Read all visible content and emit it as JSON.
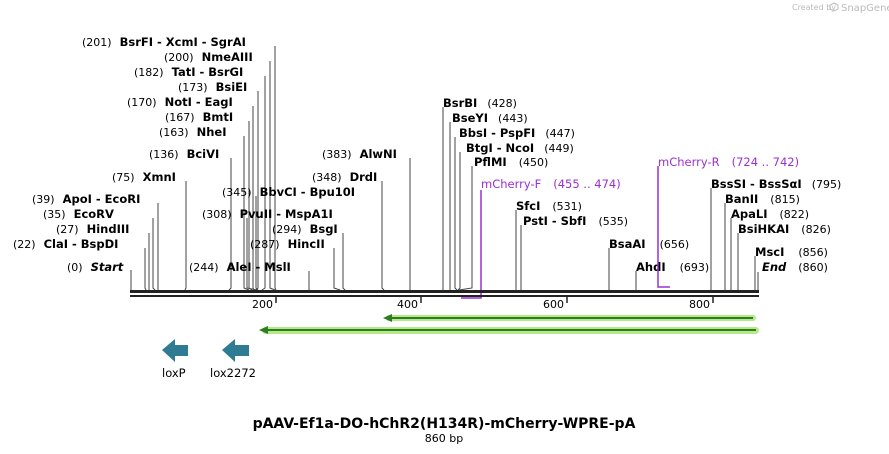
{
  "credit": {
    "created_by": "Created by",
    "brand": "SnapGene"
  },
  "map": {
    "title": "pAAV-Ef1a-DO-hChR2(H134R)-mCherry-WPRE-pA",
    "length_label": "860 bp",
    "length": 860
  },
  "ruler": {
    "ticks": [
      200,
      400,
      600,
      800
    ]
  },
  "enzymes": [
    {
      "pos": "(201)",
      "name": "BsrFI  -  XcmI  -  SgrAI",
      "bp": 201
    },
    {
      "pos": "(200)",
      "name": "NmeAIII",
      "bp": 200
    },
    {
      "pos": "(182)",
      "name": "TatI  -  BsrGI",
      "bp": 182
    },
    {
      "pos": "(173)",
      "name": "BsiEI",
      "bp": 173
    },
    {
      "pos": "(170)",
      "name": "NotI  -  EagI",
      "bp": 170
    },
    {
      "pos": "(167)",
      "name": "BmtI",
      "bp": 167
    },
    {
      "pos": "(163)",
      "name": "NheI",
      "bp": 163
    },
    {
      "pos": "(136)",
      "name": "BciVI",
      "bp": 136
    },
    {
      "pos": "(75)",
      "name": "XmnI",
      "bp": 75
    },
    {
      "pos": "(39)",
      "name": "ApoI  -  EcoRI",
      "bp": 39
    },
    {
      "pos": "(35)",
      "name": "EcoRV",
      "bp": 35
    },
    {
      "pos": "(27)",
      "name": "HindIII",
      "bp": 27
    },
    {
      "pos": "(22)",
      "name": "ClaI  -  BspDI",
      "bp": 22
    },
    {
      "pos": "(0)",
      "name": "Start",
      "bp": 0,
      "italic": true
    },
    {
      "pos": "(244)",
      "name": "AleI  -  MslI",
      "bp": 244
    },
    {
      "pos": "(345)",
      "name": "BbvCI  -  Bpu10I",
      "bp": 345
    },
    {
      "pos": "(308)",
      "name": "PvuII  -  MspA1I",
      "bp": 308
    },
    {
      "pos": "(294)",
      "name": "BsgI",
      "bp": 294
    },
    {
      "pos": "(287)",
      "name": "HincII",
      "bp": 287
    },
    {
      "pos": "(383)",
      "name": "AlwNI",
      "bp": 383
    },
    {
      "pos": "(348)",
      "name": "DrdI",
      "bp": 348
    },
    {
      "pos": "(428)",
      "name": "BsrBI",
      "bp": 428
    },
    {
      "pos": "(443)",
      "name": "BseYI",
      "bp": 443
    },
    {
      "pos": "(447)",
      "name": "BbsI  -  PspFI",
      "bp": 447
    },
    {
      "pos": "(449)",
      "name": "BtgI  -  NcoI",
      "bp": 449
    },
    {
      "pos": "(450)",
      "name": "PflMI",
      "bp": 450
    },
    {
      "pos": "(531)",
      "name": "SfcI",
      "bp": 531
    },
    {
      "pos": "(535)",
      "name": "PstI  -  SbfI",
      "bp": 535
    },
    {
      "pos": "(656)",
      "name": "BsaAI",
      "bp": 656
    },
    {
      "pos": "(693)",
      "name": "AhdI",
      "bp": 693
    },
    {
      "pos": "(795)",
      "name": "BssSI  -  BssSαI",
      "bp": 795
    },
    {
      "pos": "(815)",
      "name": "BanII",
      "bp": 815
    },
    {
      "pos": "(822)",
      "name": "ApaLI",
      "bp": 822
    },
    {
      "pos": "(826)",
      "name": "BsiHKAI",
      "bp": 826
    },
    {
      "pos": "(856)",
      "name": "MscI",
      "bp": 856
    },
    {
      "pos": "(860)",
      "name": "End",
      "bp": 860,
      "italic": true
    }
  ],
  "primers": [
    {
      "name": "mCherry-F",
      "range": "(455 .. 474)"
    },
    {
      "name": "mCherry-R",
      "range": "(724 .. 742)"
    }
  ],
  "features": [
    {
      "name": "loxP"
    },
    {
      "name": "lox2272"
    }
  ],
  "colors": {
    "primer": "#9b30d0",
    "orf": "#2e7d1e",
    "orf_fill": "#b6e88c",
    "lox": "#2e7b93"
  }
}
